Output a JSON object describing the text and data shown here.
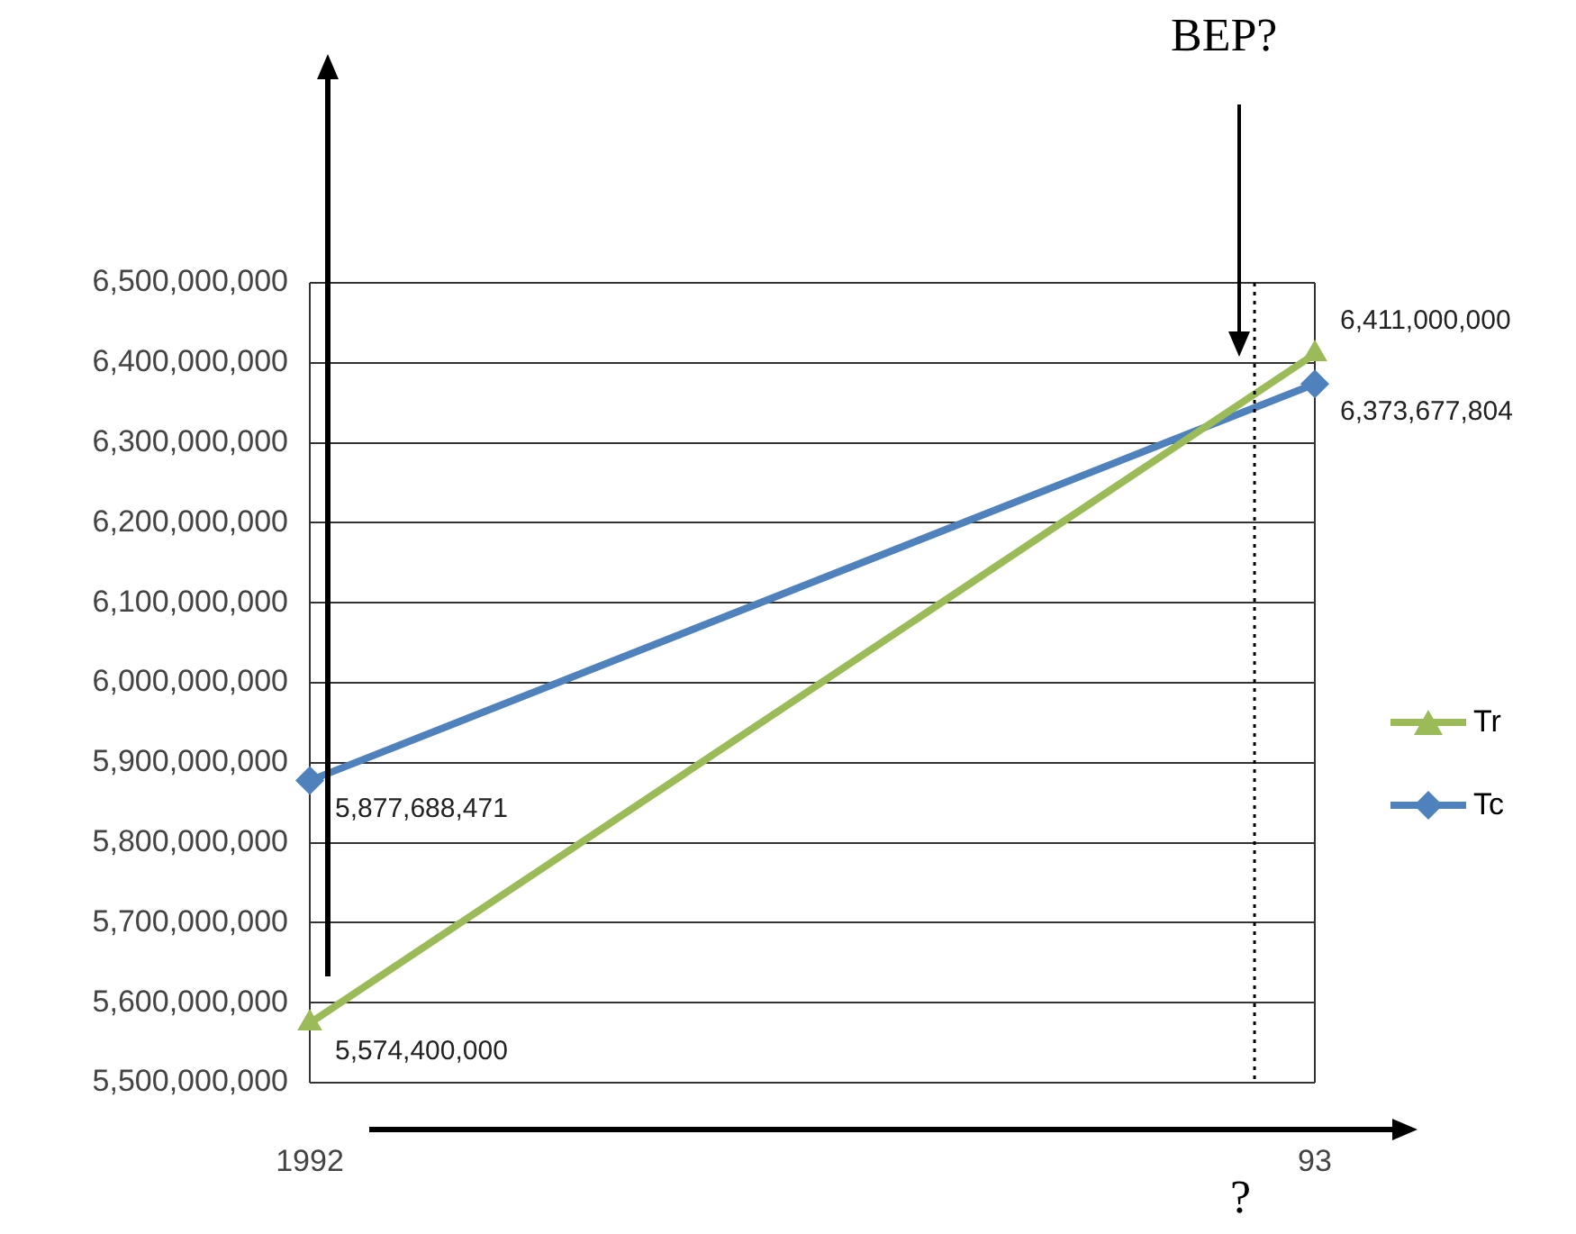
{
  "chart_data": {
    "type": "line",
    "x": [
      1992,
      1993
    ],
    "xlim": [
      1992,
      1993
    ],
    "xticks": [
      1992,
      {
        "value": 1993,
        "label": "93"
      }
    ],
    "series": [
      {
        "name": "Tr",
        "color": "#9bbb59",
        "values": [
          5574400000,
          6411000000
        ],
        "marker": "triangle",
        "value_labels": [
          "5,574,400,000",
          "6,411,000,000"
        ]
      },
      {
        "name": "Tc",
        "color": "#4f81bd",
        "values": [
          5877688471,
          6373677804
        ],
        "marker": "diamond",
        "value_labels": [
          "5,877,688,471",
          "6,373,677,804"
        ]
      }
    ],
    "ylim": [
      5500000000,
      6500000000
    ],
    "yticks": [
      {
        "value": 5500000000,
        "label": "5,500,000,000"
      },
      {
        "value": 5600000000,
        "label": "5,600,000,000"
      },
      {
        "value": 5700000000,
        "label": "5,700,000,000"
      },
      {
        "value": 5800000000,
        "label": "5,800,000,000"
      },
      {
        "value": 5900000000,
        "label": "5,900,000,000"
      },
      {
        "value": 6000000000,
        "label": "6,000,000,000"
      },
      {
        "value": 6100000000,
        "label": "6,100,000,000"
      },
      {
        "value": 6200000000,
        "label": "6,200,000,000"
      },
      {
        "value": 6300000000,
        "label": "6,300,000,000"
      },
      {
        "value": 6400000000,
        "label": "6,400,000,000"
      },
      {
        "value": 6500000000,
        "label": "6,500,000,000"
      }
    ],
    "ref_lines": [
      {
        "axis": "x",
        "value": 1992.94,
        "line_style": "dotted",
        "color": "#000000"
      }
    ],
    "grid": true,
    "legend": "right",
    "line_style": "solid",
    "annotations": [
      "BEP?",
      "?"
    ]
  }
}
